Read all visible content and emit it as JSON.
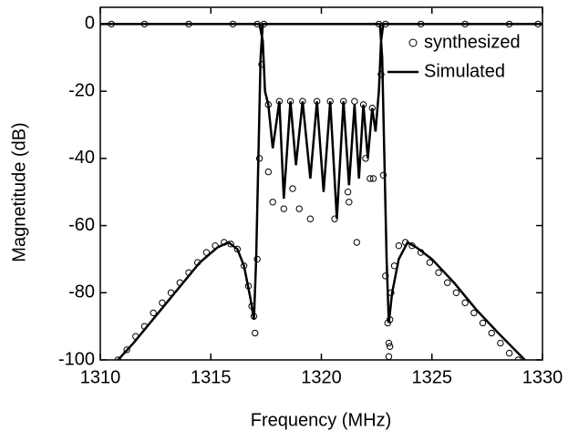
{
  "chart_data": {
    "type": "line",
    "xlabel": "Frequency (MHz)",
    "ylabel": "Magnetitude (dB)",
    "xlim": [
      1310,
      1330
    ],
    "xticks": [
      1310,
      1315,
      1320,
      1325,
      1330
    ],
    "ylim": [
      -100,
      5
    ],
    "yticks": [
      -100,
      -80,
      -60,
      -40,
      -20,
      0
    ],
    "legend": "upper right",
    "series": [
      {
        "name": "synthesized",
        "marker": "circle",
        "color": "#000000",
        "x": [
          1310.8,
          1311.2,
          1311.6,
          1312.0,
          1312.4,
          1312.8,
          1313.2,
          1313.6,
          1314.0,
          1314.4,
          1314.8,
          1315.2,
          1315.6,
          1315.9,
          1316.2,
          1316.5,
          1316.7,
          1316.85,
          1316.95,
          1317.0,
          1317.1,
          1317.2,
          1317.3,
          1317.4,
          1310.5,
          1312.0,
          1314.0,
          1316.0,
          1317.1,
          1317.6,
          1318.1,
          1318.6,
          1319.15,
          1319.8,
          1320.4,
          1321.0,
          1321.5,
          1321.9,
          1322.3,
          1322.9,
          1324.5,
          1326.5,
          1328.5,
          1329.8,
          1317.6,
          1317.8,
          1318.3,
          1318.7,
          1319.0,
          1319.5,
          1320.6,
          1321.2,
          1321.25,
          1321.6,
          1322.0,
          1322.2,
          1322.35,
          1322.6,
          1322.7,
          1322.8,
          1322.9,
          1323.0,
          1323.05,
          1323.1,
          1323.15,
          1323.3,
          1323.5,
          1323.8,
          1324.1,
          1324.5,
          1324.9,
          1325.3,
          1325.7,
          1326.1,
          1326.5,
          1326.9,
          1327.3,
          1327.7,
          1328.1,
          1328.5,
          1328.9,
          1323.05,
          1323.1
        ],
        "values": [
          -100,
          -97,
          -93,
          -90,
          -86,
          -83,
          -80,
          -77,
          -74,
          -71,
          -68,
          -66,
          -65,
          -65.5,
          -67,
          -72,
          -78,
          -84,
          -87,
          -92,
          -70,
          -40,
          -12,
          0,
          0,
          0,
          0,
          0,
          0,
          -24,
          -23,
          -23,
          -23,
          -23,
          -23,
          -23,
          -23,
          -24,
          -25,
          0,
          0,
          0,
          0,
          0,
          -44,
          -53,
          -55,
          -49,
          -55,
          -58,
          -58,
          -50,
          -53,
          -65,
          -40,
          -46,
          -46,
          0,
          -15,
          -45,
          -75,
          -89,
          -95,
          -88,
          -80,
          -72,
          -66,
          -65,
          -66,
          -68,
          -71,
          -74,
          -77,
          -80,
          -83,
          -86,
          -89,
          -92,
          -95,
          -98,
          -100,
          -99,
          -96
        ]
      },
      {
        "name": "Simulated",
        "marker": "line",
        "color": "#000000",
        "x": [
          1310,
          1317.2,
          1317.35,
          1317.45,
          1317.6,
          1317.8,
          1318.1,
          1318.3,
          1318.6,
          1318.85,
          1319.15,
          1319.5,
          1319.8,
          1320.1,
          1320.4,
          1320.7,
          1321.0,
          1321.25,
          1321.5,
          1321.7,
          1321.9,
          1322.1,
          1322.3,
          1322.45,
          1322.6,
          1322.7,
          1322.8,
          1330,
          null,
          1310.8,
          1311.5,
          1312.5,
          1313.5,
          1314.5,
          1315.3,
          1315.8,
          1316.2,
          1316.5,
          1316.8,
          1316.95,
          1317.05,
          1317.15,
          1317.25,
          1317.35,
          1322.65,
          1322.75,
          1322.85,
          1322.95,
          1323.05,
          1323.2,
          1323.5,
          1323.9,
          1324.3,
          1325,
          1326,
          1327,
          1328,
          1329.2
        ],
        "values": [
          0,
          0,
          -5,
          -20,
          -24,
          -37,
          -23,
          -52,
          -23,
          -42,
          -23,
          -46,
          -23,
          -50,
          -23,
          -58,
          -23,
          -48,
          -24,
          -46,
          -24,
          -40,
          -25,
          -32,
          -20,
          -5,
          0,
          0,
          null,
          -100,
          -95,
          -87,
          -79,
          -71,
          -66.5,
          -65,
          -67,
          -72,
          -82,
          -88,
          -70,
          -40,
          -10,
          0,
          0,
          -10,
          -40,
          -70,
          -89,
          -80,
          -70,
          -65,
          -66.5,
          -70,
          -77,
          -85,
          -92,
          -100
        ]
      }
    ]
  }
}
